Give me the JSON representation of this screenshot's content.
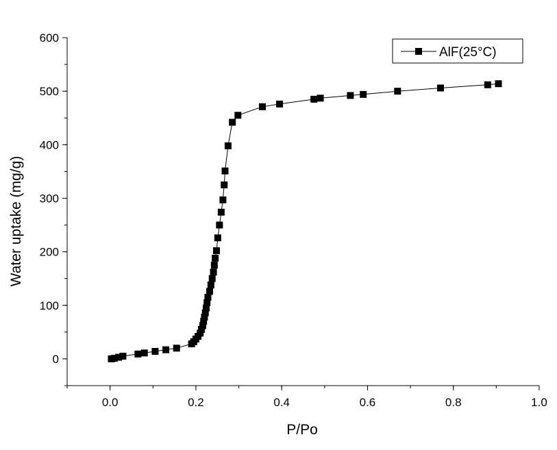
{
  "chart_data": {
    "type": "scatter",
    "title": "",
    "xlabel": "P/Po",
    "ylabel": "Water uptake (mg/g)",
    "xlim": [
      -0.1,
      1.0
    ],
    "ylim": [
      -50,
      600
    ],
    "x_ticks": [
      0.0,
      0.2,
      0.4,
      0.6,
      0.8,
      1.0
    ],
    "x_tick_labels": [
      "0.0",
      "0.2",
      "0.4",
      "0.6",
      "0.8",
      "1.0"
    ],
    "y_ticks": [
      0,
      100,
      200,
      300,
      400,
      500,
      600
    ],
    "y_tick_labels": [
      "0",
      "100",
      "200",
      "300",
      "400",
      "500",
      "600"
    ],
    "grid": false,
    "legend_position": "top-right",
    "series": [
      {
        "name": "AlF(25°C)",
        "color": "#000000",
        "marker": "square",
        "line_style": "solid-thin",
        "points": [
          [
            0.003,
            0
          ],
          [
            0.01,
            1
          ],
          [
            0.02,
            3
          ],
          [
            0.03,
            5
          ],
          [
            0.065,
            9
          ],
          [
            0.08,
            11
          ],
          [
            0.105,
            14
          ],
          [
            0.13,
            17
          ],
          [
            0.155,
            20
          ],
          [
            0.19,
            28
          ],
          [
            0.195,
            32
          ],
          [
            0.2,
            37
          ],
          [
            0.205,
            42
          ],
          [
            0.21,
            48
          ],
          [
            0.213,
            55
          ],
          [
            0.216,
            62
          ],
          [
            0.218,
            70
          ],
          [
            0.22,
            78
          ],
          [
            0.222,
            86
          ],
          [
            0.224,
            95
          ],
          [
            0.226,
            105
          ],
          [
            0.228,
            115
          ],
          [
            0.232,
            126
          ],
          [
            0.235,
            138
          ],
          [
            0.238,
            150
          ],
          [
            0.241,
            162
          ],
          [
            0.243,
            175
          ],
          [
            0.245,
            188
          ],
          [
            0.248,
            202
          ],
          [
            0.251,
            226
          ],
          [
            0.255,
            250
          ],
          [
            0.259,
            274
          ],
          [
            0.263,
            297
          ],
          [
            0.266,
            325
          ],
          [
            0.268,
            351
          ],
          [
            0.275,
            398
          ],
          [
            0.285,
            442
          ],
          [
            0.298,
            455
          ],
          [
            0.355,
            471
          ],
          [
            0.395,
            476
          ],
          [
            0.475,
            485
          ],
          [
            0.49,
            487
          ],
          [
            0.56,
            492
          ],
          [
            0.59,
            494
          ],
          [
            0.67,
            500
          ],
          [
            0.77,
            506
          ],
          [
            0.88,
            512
          ],
          [
            0.905,
            514
          ]
        ]
      }
    ]
  }
}
